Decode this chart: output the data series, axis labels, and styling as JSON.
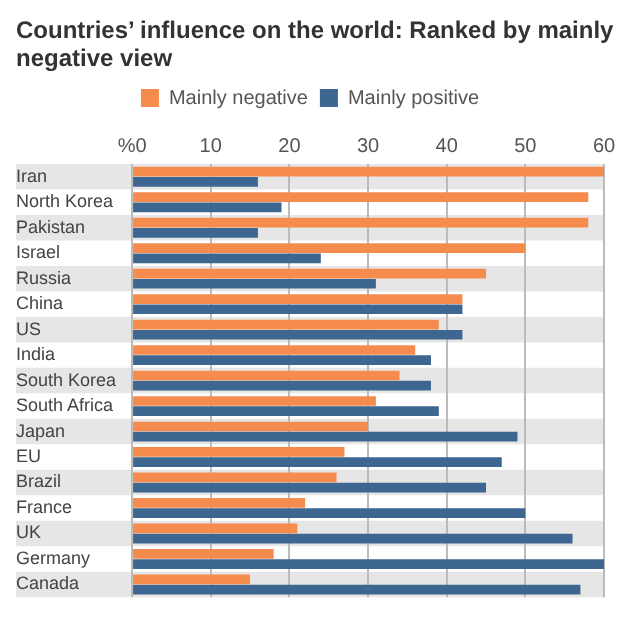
{
  "chart_data": {
    "type": "bar",
    "orientation": "horizontal",
    "title": "Countries’ influence on the world: Ranked by mainly negative view",
    "categories": [
      "Iran",
      "North Korea",
      "Pakistan",
      "Israel",
      "Russia",
      "China",
      "US",
      "India",
      "South Korea",
      "South Africa",
      "Japan",
      "EU",
      "Brazil",
      "France",
      "UK",
      "Germany",
      "Canada"
    ],
    "series": [
      {
        "name": "Mainly negative",
        "color": "#f58b4c",
        "values": [
          60,
          58,
          58,
          50,
          45,
          42,
          39,
          36,
          34,
          31,
          30,
          27,
          26,
          22,
          21,
          18,
          15
        ]
      },
      {
        "name": "Mainly positive",
        "color": "#3d6690",
        "values": [
          16,
          19,
          16,
          24,
          31,
          42,
          42,
          38,
          38,
          39,
          49,
          47,
          45,
          50,
          56,
          60,
          57
        ]
      }
    ],
    "xlim": [
      0,
      60
    ],
    "xticks": [
      {
        "value": 0,
        "label": "%0"
      },
      10,
      20,
      30,
      40,
      50,
      60
    ],
    "grid": "x",
    "legend": "top"
  }
}
